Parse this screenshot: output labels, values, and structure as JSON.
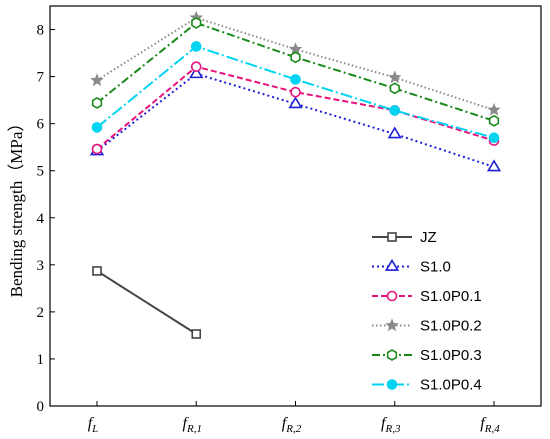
{
  "chart_data": {
    "type": "line",
    "title": "",
    "xlabel": "",
    "ylabel": "Bending strength（MPa）",
    "ylim": [
      0,
      8.5
    ],
    "yticks": [
      0,
      1,
      2,
      3,
      4,
      5,
      6,
      7,
      8
    ],
    "categories": [
      {
        "main": "f",
        "sub": "L"
      },
      {
        "main": "f",
        "sub": "R,1"
      },
      {
        "main": "f",
        "sub": "R,2"
      },
      {
        "main": "f",
        "sub": "R,3"
      },
      {
        "main": "f",
        "sub": "R,4"
      }
    ],
    "grid": false,
    "legend_position": "lower-right",
    "series": [
      {
        "name": "JZ",
        "values": [
          2.87,
          1.53,
          null,
          null,
          null
        ],
        "color": "#444444",
        "dash": "",
        "marker": "square"
      },
      {
        "name": "S1.0",
        "values": [
          5.42,
          7.06,
          6.42,
          5.78,
          5.08
        ],
        "color": "#1f1fd6",
        "dash": "2,3",
        "marker": "triangle"
      },
      {
        "name": "S1.0P0.1",
        "values": [
          5.46,
          7.21,
          6.67,
          6.28,
          5.64
        ],
        "color": "#e8127c",
        "dash": "6,3",
        "marker": "circle"
      },
      {
        "name": "S1.0P0.2",
        "values": [
          6.92,
          8.25,
          7.58,
          6.98,
          6.29
        ],
        "color": "#8a8a8a",
        "dash": "1.5,2.5",
        "marker": "star"
      },
      {
        "name": "S1.0P0.3",
        "values": [
          6.44,
          8.14,
          7.41,
          6.75,
          6.06
        ],
        "color": "#1a8a1a",
        "dash": "8,3,2,3",
        "marker": "hexagon"
      },
      {
        "name": "S1.0P0.4",
        "values": [
          5.92,
          7.64,
          6.94,
          6.28,
          5.7
        ],
        "color": "#00d4f0",
        "dash": "12,3,2,3",
        "marker": "filled-circle"
      }
    ]
  }
}
